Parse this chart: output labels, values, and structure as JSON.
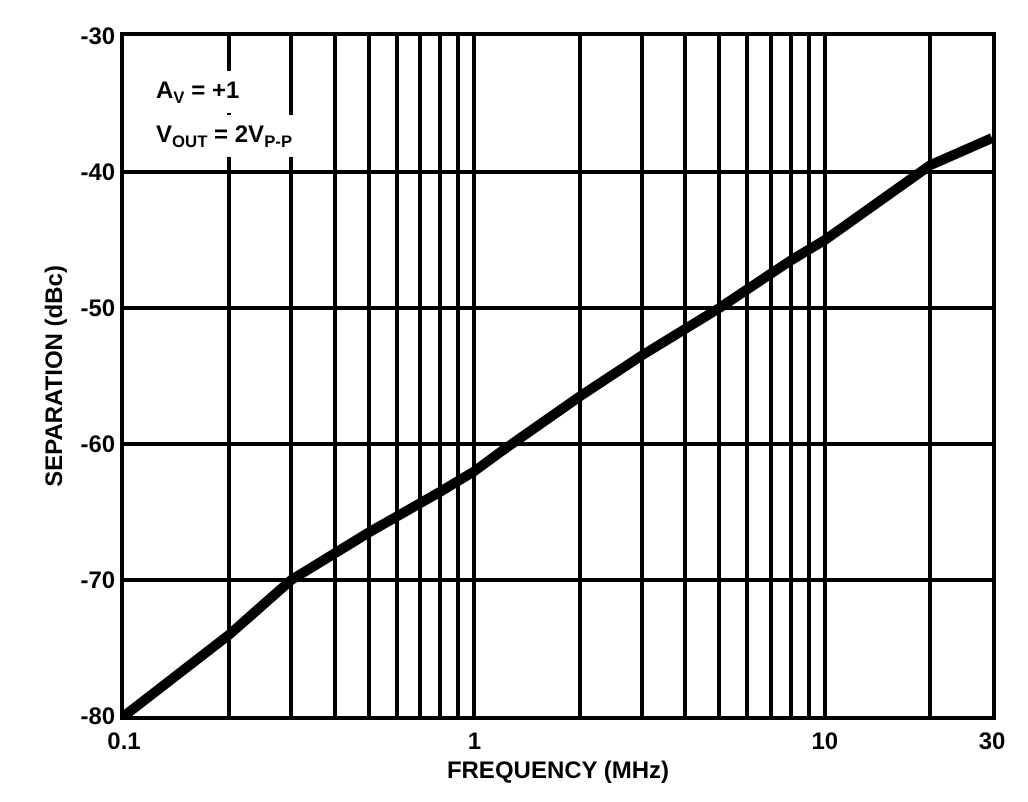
{
  "chart_data": {
    "type": "line",
    "xlabel": "FREQUENCY (MHz)",
    "ylabel": "SEPARATION (dBc)",
    "annotations": [
      "A$_{V}$ = +1",
      "V$_{OUT}$ = 2V$_{P-P}$"
    ],
    "x": [
      0.1,
      0.2,
      0.3,
      0.5,
      0.8,
      1,
      1.2,
      2,
      3,
      5,
      8,
      10,
      20,
      30
    ],
    "series": [
      {
        "color": "#000000",
        "values": [
          -80,
          -74,
          -70,
          -66.5,
          -63.5,
          -62,
          -60.5,
          -56.5,
          -53.5,
          -50,
          -46.5,
          -45,
          -39.5,
          -37.5
        ]
      }
    ],
    "log": "x",
    "xlim": [
      0.1,
      30
    ],
    "xticks": [
      0.1,
      {
        "value": 0.2,
        "label": null
      },
      {
        "value": 0.3,
        "label": null
      },
      {
        "value": 0.4,
        "label": null
      },
      {
        "value": 0.5,
        "label": null
      },
      {
        "value": 0.6,
        "label": null
      },
      {
        "value": 0.7,
        "label": null
      },
      {
        "value": 0.8,
        "label": null
      },
      {
        "value": 0.9,
        "label": null
      },
      1,
      {
        "value": 2,
        "label": null
      },
      {
        "value": 3,
        "label": null
      },
      {
        "value": 4,
        "label": null
      },
      {
        "value": 5,
        "label": null
      },
      {
        "value": 6,
        "label": null
      },
      {
        "value": 7,
        "label": null
      },
      {
        "value": 8,
        "label": null
      },
      {
        "value": 9,
        "label": null
      },
      10,
      {
        "value": 20,
        "label": null
      },
      30
    ],
    "ylim": [
      -80,
      -30
    ],
    "yticks": [
      -80,
      -70,
      -60,
      -50,
      -40,
      -30
    ],
    "grid": true,
    "marker": "none",
    "line_style": "solid"
  }
}
